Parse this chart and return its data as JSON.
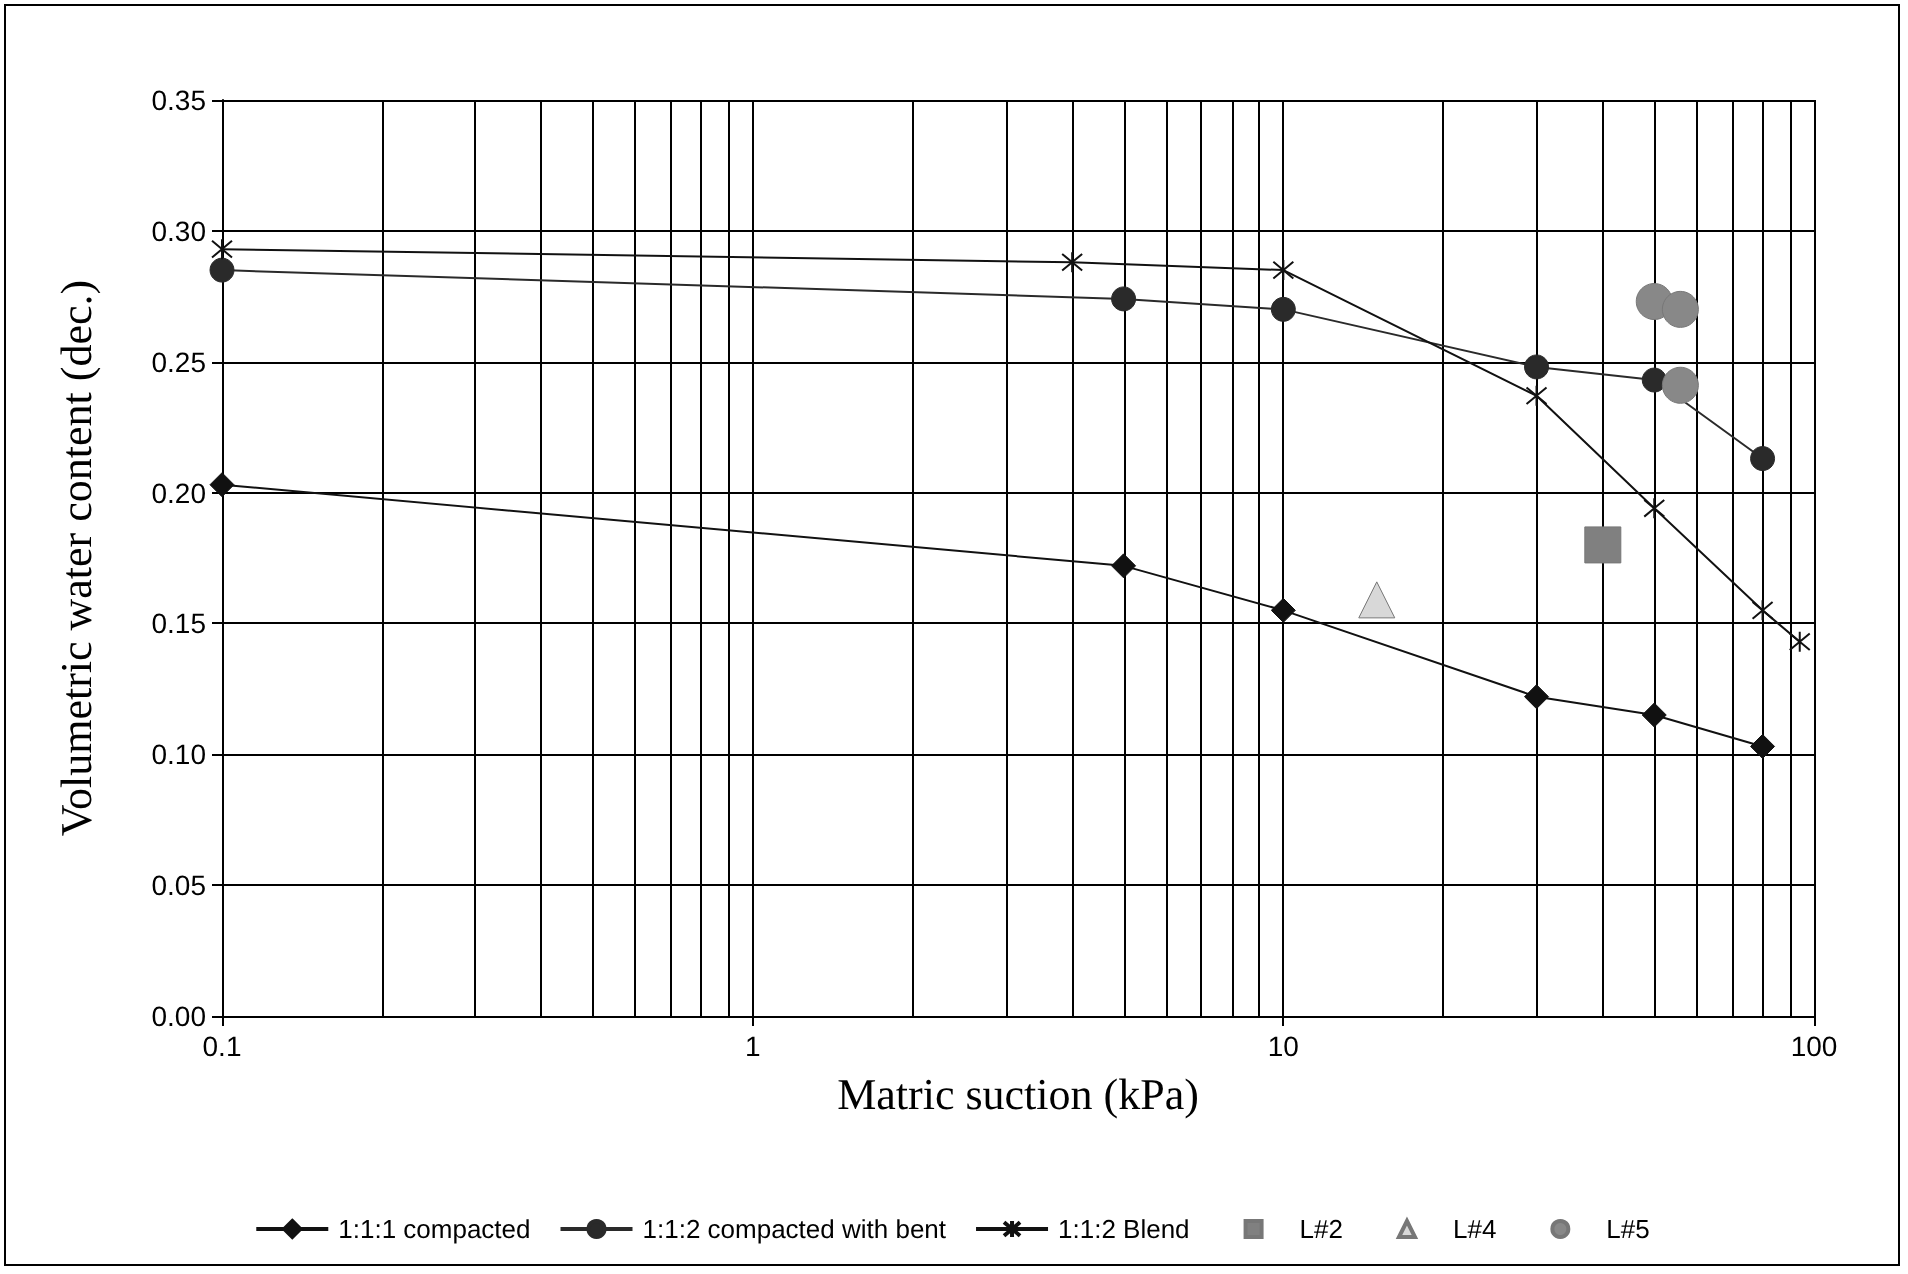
{
  "chart_data": {
    "type": "line",
    "xlabel": "Matric suction (kPa)",
    "ylabel": "Volumetric water content (dec.)",
    "log": "x",
    "grid": true,
    "legend": "bottom",
    "line_style": "solid",
    "xlim": [
      0.1,
      100
    ],
    "xticks": [
      0.1,
      1,
      10,
      100
    ],
    "ylim": [
      0,
      0.35
    ],
    "yticks": [
      {
        "value": 0,
        "label": "0.00"
      },
      {
        "value": 0.05,
        "label": "0.05"
      },
      {
        "value": 0.1,
        "label": "0.10"
      },
      {
        "value": 0.15,
        "label": "0.15"
      },
      {
        "value": 0.2,
        "label": "0.20"
      },
      {
        "value": 0.25,
        "label": "0.25"
      },
      {
        "value": 0.3,
        "label": "0.30"
      },
      {
        "value": 0.35,
        "label": "0.35"
      }
    ],
    "series": [
      {
        "name": "1:1:1 compacted",
        "marker": "diamond",
        "color": "#111111",
        "x": [
          0.1,
          5,
          10,
          30,
          50,
          80
        ],
        "values": [
          0.203,
          0.172,
          0.155,
          0.122,
          0.115,
          0.103
        ]
      },
      {
        "name": "1:1:2 compacted with bent",
        "marker": "circle",
        "color": "#2a2a2a",
        "x": [
          0.1,
          5,
          10,
          30,
          50,
          80
        ],
        "values": [
          0.285,
          0.274,
          0.27,
          0.248,
          0.243,
          0.213
        ]
      },
      {
        "name": "1:1:2 Blend",
        "marker": "cross",
        "color": "#111111",
        "x": [
          0.1,
          4,
          10,
          30,
          50,
          80,
          94
        ],
        "values": [
          0.293,
          0.288,
          0.285,
          0.237,
          0.194,
          0.155,
          0.143
        ]
      },
      {
        "name": "L#2",
        "type": "scatter",
        "marker": "square",
        "color": "#808080",
        "x": [
          40
        ],
        "values": [
          0.18
        ]
      },
      {
        "name": "L#4",
        "type": "scatter",
        "marker": "triangle",
        "color": "#d8d8d8",
        "x": [
          15
        ],
        "values": [
          0.159
        ]
      },
      {
        "name": "L#5",
        "type": "scatter",
        "marker": "circle",
        "color": "#888888",
        "x": [
          50,
          56,
          56
        ],
        "values": [
          0.273,
          0.27,
          0.241
        ]
      }
    ]
  }
}
